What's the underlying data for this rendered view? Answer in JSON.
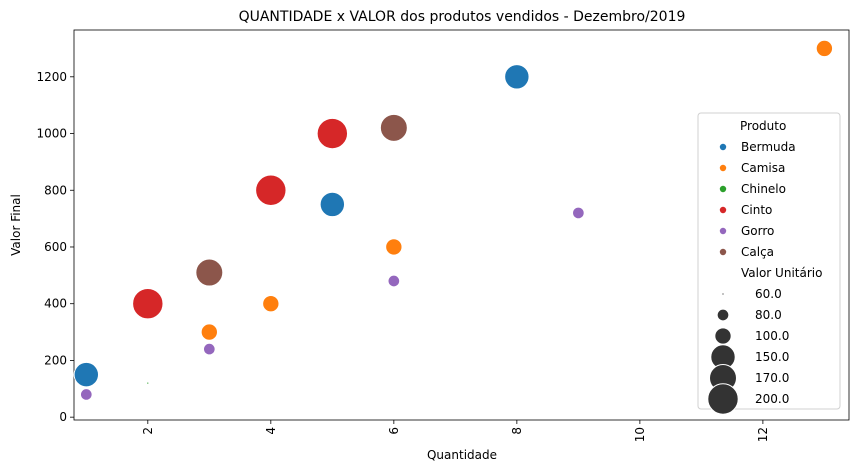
{
  "chart_data": {
    "type": "scatter",
    "title": "QUANTIDADE x VALOR dos produtos vendidos - Dezembro/2019",
    "xlabel": "Quantidade",
    "ylabel": "Valor Final",
    "xlim": [
      0.8,
      13.4
    ],
    "ylim": [
      -10,
      1365
    ],
    "xticks": [
      2,
      4,
      6,
      8,
      10,
      12
    ],
    "yticks": [
      0,
      200,
      400,
      600,
      800,
      1000,
      1200
    ],
    "grid": false,
    "legend_placement": "right",
    "hue_title": "Produto",
    "size_title": "Valor Unitário",
    "size_legend": [
      60.0,
      80.0,
      100.0,
      150.0,
      170.0,
      200.0
    ],
    "size_legend_labels": [
      "60.0",
      "80.0",
      "100.0",
      "150.0",
      "170.0",
      "200.0"
    ],
    "series": [
      {
        "name": "Bermuda",
        "color": "#1f77b4",
        "points": [
          {
            "x": 1,
            "y": 150,
            "unit_value": 150
          },
          {
            "x": 5,
            "y": 750,
            "unit_value": 150
          },
          {
            "x": 8,
            "y": 1200,
            "unit_value": 150
          }
        ]
      },
      {
        "name": "Camisa",
        "color": "#ff7f0e",
        "points": [
          {
            "x": 3,
            "y": 300,
            "unit_value": 100
          },
          {
            "x": 4,
            "y": 400,
            "unit_value": 100
          },
          {
            "x": 6,
            "y": 600,
            "unit_value": 100
          },
          {
            "x": 13,
            "y": 1300,
            "unit_value": 100
          }
        ]
      },
      {
        "name": "Chinelo",
        "color": "#2ca02c",
        "points": [
          {
            "x": 2,
            "y": 120,
            "unit_value": 60
          }
        ]
      },
      {
        "name": "Cinto",
        "color": "#d62728",
        "points": [
          {
            "x": 2,
            "y": 400,
            "unit_value": 200
          },
          {
            "x": 4,
            "y": 800,
            "unit_value": 200
          },
          {
            "x": 5,
            "y": 1000,
            "unit_value": 200
          }
        ]
      },
      {
        "name": "Gorro",
        "color": "#9467bd",
        "points": [
          {
            "x": 1,
            "y": 80,
            "unit_value": 80
          },
          {
            "x": 3,
            "y": 240,
            "unit_value": 80
          },
          {
            "x": 6,
            "y": 480,
            "unit_value": 80
          },
          {
            "x": 9,
            "y": 720,
            "unit_value": 80
          }
        ]
      },
      {
        "name": "Calça",
        "color": "#8c564b",
        "points": [
          {
            "x": 3,
            "y": 510,
            "unit_value": 170
          },
          {
            "x": 6,
            "y": 1020,
            "unit_value": 170
          }
        ]
      }
    ]
  }
}
